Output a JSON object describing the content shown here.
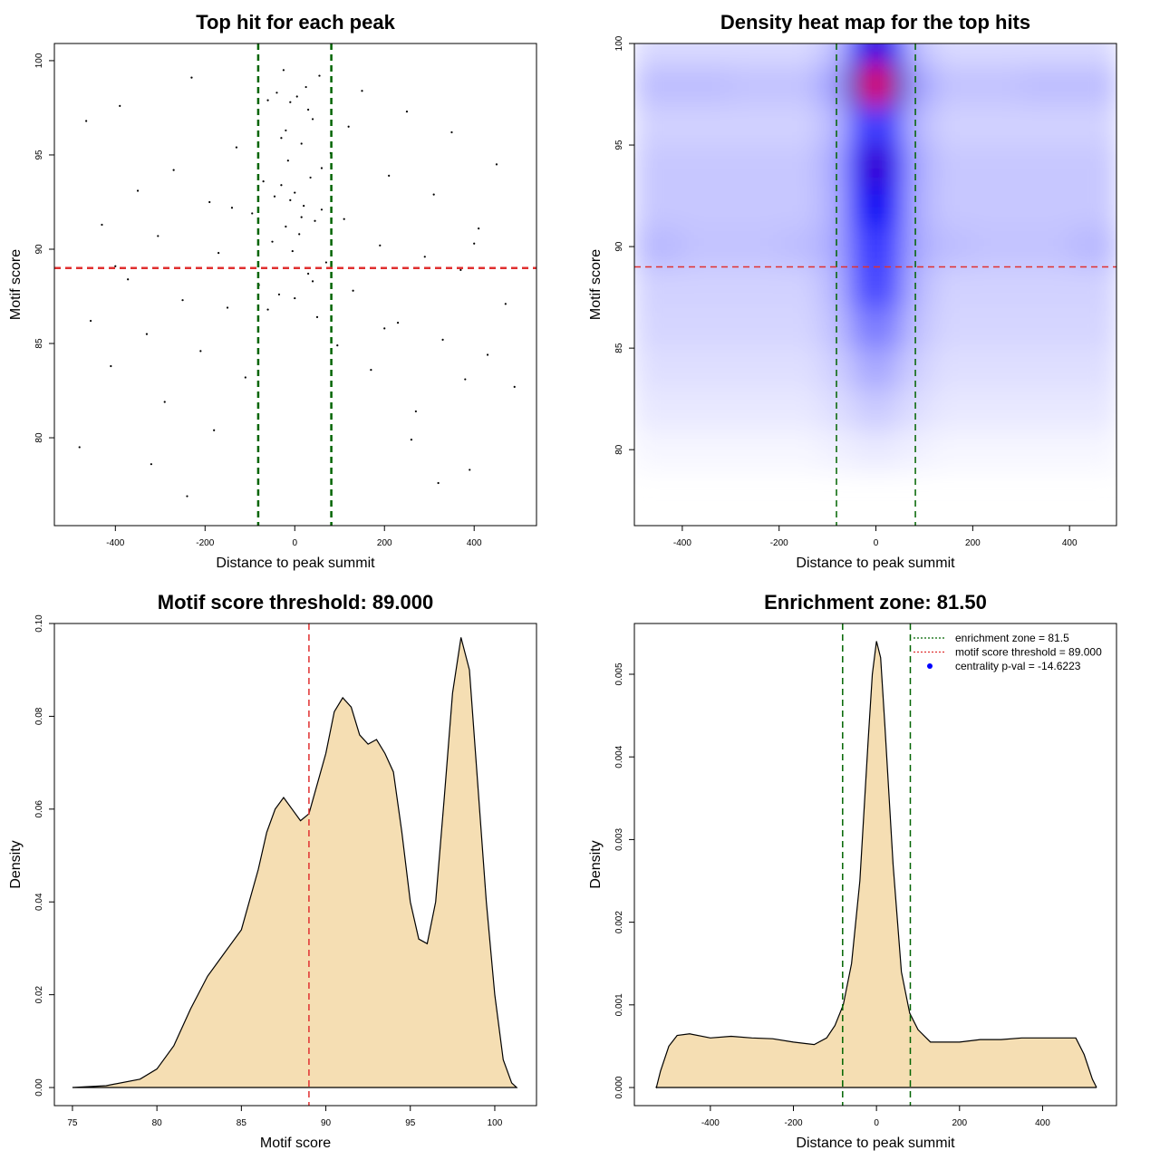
{
  "chart_data": [
    {
      "type": "scatter",
      "title": "Top hit for each peak",
      "xlabel": "Distance to peak summit",
      "ylabel": "Motif score",
      "color": "#000000",
      "x": [
        -480,
        -455,
        -430,
        -410,
        -390,
        -372,
        -350,
        -330,
        -305,
        -290,
        -270,
        -250,
        -230,
        -210,
        -190,
        -170,
        -150,
        -130,
        -110,
        -95,
        -80,
        -70,
        -60,
        -50,
        -45,
        -40,
        -35,
        -30,
        -25,
        -20,
        -15,
        -10,
        -5,
        0,
        5,
        10,
        15,
        20,
        25,
        30,
        35,
        40,
        45,
        50,
        55,
        60,
        70,
        80,
        95,
        110,
        130,
        150,
        170,
        190,
        210,
        230,
        250,
        270,
        290,
        310,
        330,
        350,
        370,
        390,
        410,
        430,
        450,
        470,
        490,
        -465,
        -320,
        -180,
        -60,
        0,
        40,
        120,
        260,
        380,
        -240,
        30,
        -10,
        -400,
        400,
        15,
        -30,
        60,
        200,
        -140,
        320,
        -20
      ],
      "values": [
        79.5,
        86.2,
        91.3,
        83.8,
        97.6,
        88.4,
        93.1,
        85.5,
        90.7,
        81.9,
        94.2,
        87.3,
        99.1,
        84.6,
        92.5,
        89.8,
        86.9,
        95.4,
        83.2,
        91.9,
        88.1,
        93.6,
        97.9,
        90.4,
        92.8,
        98.3,
        87.6,
        93.4,
        99.5,
        91.2,
        94.7,
        97.8,
        89.9,
        93.0,
        98.1,
        90.8,
        95.6,
        92.3,
        98.6,
        88.7,
        93.8,
        96.9,
        91.5,
        86.4,
        99.2,
        92.1,
        89.3,
        95.1,
        84.9,
        91.6,
        87.8,
        98.4,
        83.6,
        90.2,
        93.9,
        86.1,
        97.3,
        81.4,
        89.6,
        92.9,
        85.2,
        96.2,
        88.9,
        78.3,
        91.1,
        84.4,
        94.5,
        87.1,
        82.7,
        96.8,
        78.6,
        80.4,
        86.8,
        87.4,
        88.3,
        96.5,
        79.9,
        83.1,
        76.9,
        97.4,
        92.6,
        89.1,
        90.3,
        91.7,
        95.9,
        94.3,
        85.8,
        92.2,
        77.6,
        96.3
      ],
      "xlim": [
        -536,
        539
      ],
      "ylim": [
        75.34,
        100.91
      ],
      "xticks": [
        -400,
        -200,
        0,
        200,
        400
      ],
      "yticks": [
        80,
        85,
        90,
        95,
        100
      ],
      "ref_lines": [
        {
          "axis": "x",
          "value": -81.5,
          "color": "#006400"
        },
        {
          "axis": "x",
          "value": 81.5,
          "color": "#006400"
        },
        {
          "axis": "y",
          "value": 89,
          "color": "#e03030"
        }
      ]
    },
    {
      "type": "heatmap",
      "title": "Density heat map for the top hits",
      "xlabel": "Distance to peak summit",
      "ylabel": "Motif score",
      "xbins": [
        -500,
        -400,
        -300,
        -200,
        -120,
        -60,
        -20,
        20,
        60,
        120,
        200,
        300,
        400,
        500
      ],
      "ybins": [
        79,
        81,
        83,
        85,
        87,
        89,
        91,
        93,
        95,
        97,
        99,
        101
      ],
      "z": [
        [
          0.02,
          0.02,
          0.02,
          0.02,
          0.03,
          0.04,
          0.05,
          0.04,
          0.03,
          0.02,
          0.02,
          0.02,
          0.02
        ],
        [
          0.05,
          0.05,
          0.05,
          0.05,
          0.07,
          0.1,
          0.12,
          0.1,
          0.07,
          0.05,
          0.05,
          0.05,
          0.05
        ],
        [
          0.07,
          0.07,
          0.07,
          0.07,
          0.1,
          0.16,
          0.2,
          0.16,
          0.1,
          0.07,
          0.07,
          0.07,
          0.07
        ],
        [
          0.09,
          0.09,
          0.09,
          0.09,
          0.13,
          0.25,
          0.3,
          0.25,
          0.13,
          0.09,
          0.09,
          0.09,
          0.09
        ],
        [
          0.1,
          0.1,
          0.1,
          0.1,
          0.15,
          0.35,
          0.42,
          0.35,
          0.15,
          0.1,
          0.1,
          0.1,
          0.1
        ],
        [
          0.15,
          0.13,
          0.13,
          0.14,
          0.18,
          0.38,
          0.45,
          0.38,
          0.18,
          0.14,
          0.13,
          0.13,
          0.15
        ],
        [
          0.12,
          0.12,
          0.12,
          0.12,
          0.17,
          0.48,
          0.58,
          0.48,
          0.17,
          0.12,
          0.12,
          0.12,
          0.12
        ],
        [
          0.12,
          0.12,
          0.12,
          0.12,
          0.18,
          0.55,
          0.68,
          0.55,
          0.18,
          0.12,
          0.12,
          0.12,
          0.12
        ],
        [
          0.1,
          0.1,
          0.1,
          0.1,
          0.15,
          0.38,
          0.45,
          0.38,
          0.15,
          0.1,
          0.1,
          0.1,
          0.1
        ],
        [
          0.14,
          0.14,
          0.13,
          0.13,
          0.2,
          0.7,
          1.0,
          0.7,
          0.2,
          0.13,
          0.13,
          0.14,
          0.14
        ],
        [
          0.08,
          0.08,
          0.08,
          0.08,
          0.13,
          0.45,
          0.62,
          0.45,
          0.13,
          0.08,
          0.08,
          0.08,
          0.08
        ]
      ],
      "colors": [
        "#ffffff",
        "#0000ff",
        "#ff0000"
      ],
      "xlim": [
        -499,
        497
      ],
      "ylim": [
        76.26,
        100
      ],
      "xticks": [
        -400,
        -200,
        0,
        200,
        400
      ],
      "yticks": [
        80,
        85,
        90,
        95,
        100
      ],
      "ref_lines": [
        {
          "axis": "x",
          "value": -81.5,
          "color": "#006400"
        },
        {
          "axis": "x",
          "value": 81.5,
          "color": "#006400"
        },
        {
          "axis": "y",
          "value": 89,
          "color": "#e03030"
        }
      ]
    },
    {
      "type": "area",
      "title": "Motif score threshold: 89.000",
      "xlabel": "Motif score",
      "ylabel": "Density",
      "color": "#f5deb3",
      "x": [
        75,
        77,
        79,
        80,
        81,
        82,
        83,
        84,
        85,
        86,
        86.5,
        87,
        87.5,
        88,
        88.5,
        89,
        90,
        90.5,
        91,
        91.5,
        92,
        92.5,
        93,
        93.5,
        94,
        94.5,
        95,
        95.5,
        96,
        96.5,
        97,
        97.5,
        98,
        98.5,
        99,
        99.5,
        100,
        100.5,
        101,
        101.3
      ],
      "values": [
        0,
        0.0004,
        0.0018,
        0.004,
        0.009,
        0.017,
        0.024,
        0.029,
        0.034,
        0.047,
        0.055,
        0.06,
        0.0625,
        0.06,
        0.0575,
        0.059,
        0.072,
        0.081,
        0.084,
        0.082,
        0.076,
        0.074,
        0.075,
        0.072,
        0.068,
        0.055,
        0.04,
        0.032,
        0.031,
        0.04,
        0.062,
        0.085,
        0.097,
        0.09,
        0.065,
        0.04,
        0.02,
        0.006,
        0.001,
        0
      ],
      "xlim": [
        73.93,
        102.47
      ],
      "ylim": [
        -0.0039,
        0.1
      ],
      "xticks": [
        75,
        80,
        85,
        90,
        95,
        100
      ],
      "yticks": [
        {
          "value": 0,
          "label": "0.00"
        },
        {
          "value": 0.02,
          "label": "0.02"
        },
        {
          "value": 0.04,
          "label": "0.04"
        },
        {
          "value": 0.06,
          "label": "0.06"
        },
        {
          "value": 0.08,
          "label": "0.08"
        },
        {
          "value": 0.1,
          "label": "0.10"
        }
      ],
      "ref_lines": [
        {
          "axis": "x",
          "value": 89,
          "color": "#e03030"
        }
      ]
    },
    {
      "type": "area",
      "title": "Enrichment zone: 81.50",
      "xlabel": "Distance to peak summit",
      "ylabel": "Density",
      "color": "#f5deb3",
      "x": [
        -530,
        -520,
        -500,
        -480,
        -450,
        -400,
        -350,
        -300,
        -250,
        -200,
        -150,
        -120,
        -100,
        -80,
        -60,
        -40,
        -20,
        -10,
        0,
        10,
        20,
        40,
        60,
        80,
        100,
        130,
        160,
        200,
        250,
        300,
        350,
        400,
        450,
        480,
        500,
        520,
        530
      ],
      "values": [
        0,
        0.0002,
        0.0005,
        0.00063,
        0.00065,
        0.0006,
        0.00062,
        0.0006,
        0.00059,
        0.00055,
        0.00052,
        0.0006,
        0.00075,
        0.001,
        0.0015,
        0.0025,
        0.0042,
        0.005,
        0.0054,
        0.0052,
        0.0044,
        0.0027,
        0.0014,
        0.0009,
        0.0007,
        0.00055,
        0.00055,
        0.00055,
        0.00058,
        0.00058,
        0.0006,
        0.0006,
        0.0006,
        0.0006,
        0.0004,
        0.0001,
        0
      ],
      "xlim": [
        -583,
        578
      ],
      "ylim": [
        -0.000219,
        0.005614
      ],
      "xticks": [
        -400,
        -200,
        0,
        200,
        400
      ],
      "yticks": [
        {
          "value": 0,
          "label": "0.000"
        },
        {
          "value": 0.001,
          "label": "0.001"
        },
        {
          "value": 0.002,
          "label": "0.002"
        },
        {
          "value": 0.003,
          "label": "0.003"
        },
        {
          "value": 0.004,
          "label": "0.004"
        },
        {
          "value": 0.005,
          "label": "0.005"
        }
      ],
      "ref_lines": [
        {
          "axis": "x",
          "value": -81.5,
          "color": "#006400"
        },
        {
          "axis": "x",
          "value": 81.5,
          "color": "#006400"
        }
      ],
      "legend_position": "top-right",
      "legend": [
        {
          "label": "enrichment zone = 81.5",
          "color": "#006400",
          "marker": "line"
        },
        {
          "label": "motif score threshold = 89.000",
          "color": "#e03030",
          "marker": "line"
        },
        {
          "label": "centrality p-val = -14.6223",
          "color": "#0000ff",
          "marker": "point"
        }
      ]
    }
  ]
}
